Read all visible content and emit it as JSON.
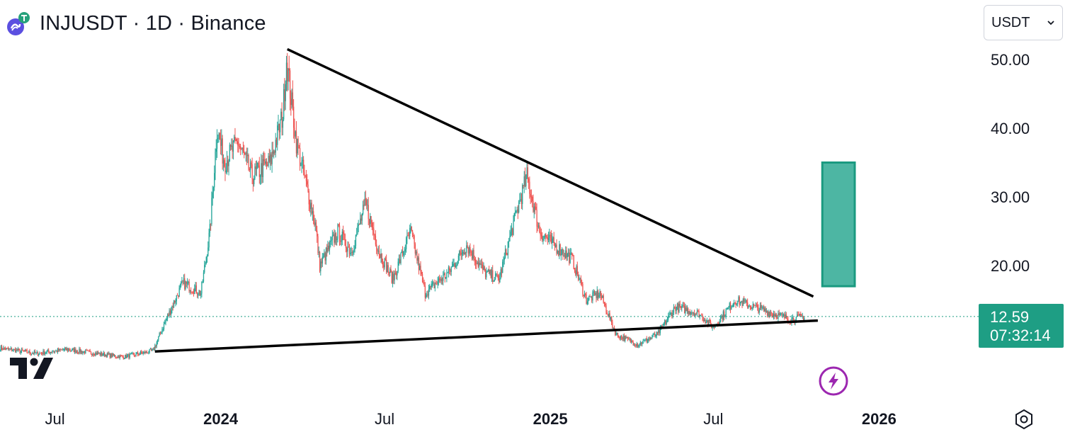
{
  "header": {
    "symbol_title": "INJUSDT · 1D · Binance",
    "logo_icon": "injective-coin-icon",
    "badge_icon": "tether-badge-icon"
  },
  "currency_select": {
    "value": "USDT",
    "icon": "chevron-down-icon"
  },
  "price_tag": {
    "price": "12.59",
    "countdown": "07:32:14",
    "color": "#1e9e84"
  },
  "colors": {
    "up": "#26a69a",
    "down": "#ef5350",
    "trendline": "#000000",
    "box_fill": "#4db6a3",
    "box_border": "#1a9a80",
    "last_price_line": "#1e9e84"
  },
  "chart_data": {
    "type": "candlestick",
    "symbol": "INJUSDT",
    "interval": "1D",
    "exchange": "Binance",
    "price_axis": {
      "ticks": [
        50,
        40,
        30,
        20
      ],
      "tick_labels": [
        "50.00",
        "40.00",
        "30.00",
        "20.00"
      ],
      "ylim": [
        5,
        55
      ]
    },
    "time_axis": {
      "ticks": [
        {
          "date": "2023-07-01",
          "label": "Jul",
          "bold": false
        },
        {
          "date": "2024-01-01",
          "label": "2024",
          "bold": true
        },
        {
          "date": "2024-07-01",
          "label": "Jul",
          "bold": false
        },
        {
          "date": "2025-01-01",
          "label": "2025",
          "bold": true
        },
        {
          "date": "2025-07-01",
          "label": "Jul",
          "bold": false
        },
        {
          "date": "2026-01-01",
          "label": "2026",
          "bold": true
        }
      ],
      "xlim": [
        "2023-05-01",
        "2026-04-20"
      ]
    },
    "series": [
      {
        "name": "INJUSDT",
        "points": [
          [
            "2023-05-01",
            8.0
          ],
          [
            "2023-06-10",
            7.2
          ],
          [
            "2023-07-15",
            7.8
          ],
          [
            "2023-08-10",
            7.3
          ],
          [
            "2023-09-15",
            6.7
          ],
          [
            "2023-10-18",
            7.6
          ],
          [
            "2023-11-01",
            12.0
          ],
          [
            "2023-11-20",
            17.5
          ],
          [
            "2023-12-10",
            16.0
          ],
          [
            "2023-12-20",
            25.0
          ],
          [
            "2023-12-28",
            40.0
          ],
          [
            "2024-01-05",
            35.0
          ],
          [
            "2024-01-20",
            38.0
          ],
          [
            "2024-02-05",
            33.0
          ],
          [
            "2024-02-25",
            35.0
          ],
          [
            "2024-03-10",
            42.0
          ],
          [
            "2024-03-14",
            50.0
          ],
          [
            "2024-03-25",
            38.0
          ],
          [
            "2024-04-15",
            26.0
          ],
          [
            "2024-04-20",
            20.0
          ],
          [
            "2024-05-10",
            25.0
          ],
          [
            "2024-05-25",
            22.0
          ],
          [
            "2024-06-10",
            29.0
          ],
          [
            "2024-06-25",
            22.0
          ],
          [
            "2024-07-10",
            18.0
          ],
          [
            "2024-07-30",
            25.0
          ],
          [
            "2024-08-15",
            16.0
          ],
          [
            "2024-09-10",
            19.0
          ],
          [
            "2024-09-30",
            23.0
          ],
          [
            "2024-10-20",
            19.0
          ],
          [
            "2024-11-05",
            18.0
          ],
          [
            "2024-11-25",
            28.0
          ],
          [
            "2024-12-06",
            33.0
          ],
          [
            "2024-12-20",
            25.0
          ],
          [
            "2025-01-05",
            23.0
          ],
          [
            "2025-01-25",
            21.0
          ],
          [
            "2025-02-10",
            15.0
          ],
          [
            "2025-02-25",
            16.0
          ],
          [
            "2025-03-15",
            10.0
          ],
          [
            "2025-04-08",
            8.5
          ],
          [
            "2025-04-30",
            10.0
          ],
          [
            "2025-05-20",
            14.0
          ],
          [
            "2025-06-15",
            13.0
          ],
          [
            "2025-07-01",
            11.0
          ],
          [
            "2025-07-25",
            15.0
          ],
          [
            "2025-08-15",
            14.0
          ],
          [
            "2025-09-05",
            13.0
          ],
          [
            "2025-09-25",
            12.2
          ],
          [
            "2025-10-10",
            12.59
          ]
        ]
      }
    ],
    "drawings": [
      {
        "type": "trendline",
        "name": "descending-resistance",
        "from": [
          "2024-03-15",
          51.5
        ],
        "to": [
          "2025-10-20",
          15.5
        ]
      },
      {
        "type": "trendline",
        "name": "ascending-support",
        "from": [
          "2023-10-20",
          7.5
        ],
        "to": [
          "2025-10-25",
          12.0
        ]
      },
      {
        "type": "target-box",
        "name": "projection-box",
        "from": [
          "2025-10-30",
          35.0
        ],
        "to": [
          "2025-12-05",
          17.0
        ]
      }
    ],
    "last_price": 12.59
  }
}
